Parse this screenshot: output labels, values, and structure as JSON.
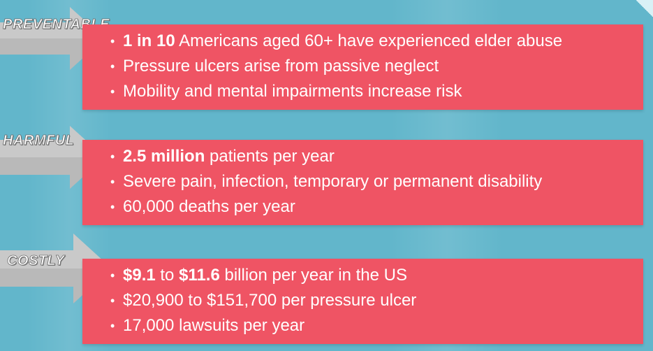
{
  "colors": {
    "background": "#62b6cb",
    "panel": "#ef5464",
    "arrow": "#bdbdbd",
    "text": "#ffffff"
  },
  "sections": [
    {
      "label": "PREVENTABLE",
      "bullets": [
        {
          "bold": "1 in 10",
          "rest": " Americans aged 60+ have experienced elder abuse"
        },
        {
          "bold": "",
          "rest": "Pressure ulcers arise from passive neglect"
        },
        {
          "bold": "",
          "rest": "Mobility and mental impairments increase risk"
        }
      ]
    },
    {
      "label": "HARMFUL",
      "bullets": [
        {
          "bold": "2.5 million",
          "rest": " patients per year"
        },
        {
          "bold": "",
          "rest": "Severe pain, infection, temporary or permanent disability"
        },
        {
          "bold": "",
          "rest": "60,000 deaths per year"
        }
      ]
    },
    {
      "label": "COSTLY",
      "bullets": [
        {
          "bold": "$9.1",
          "mid": " to ",
          "bold2": "$11.6",
          "rest": " billion per year in the US"
        },
        {
          "bold": "",
          "rest": "$20,900 to $151,700 per pressure ulcer"
        },
        {
          "bold": "",
          "rest": "17,000 lawsuits per year"
        }
      ]
    }
  ]
}
